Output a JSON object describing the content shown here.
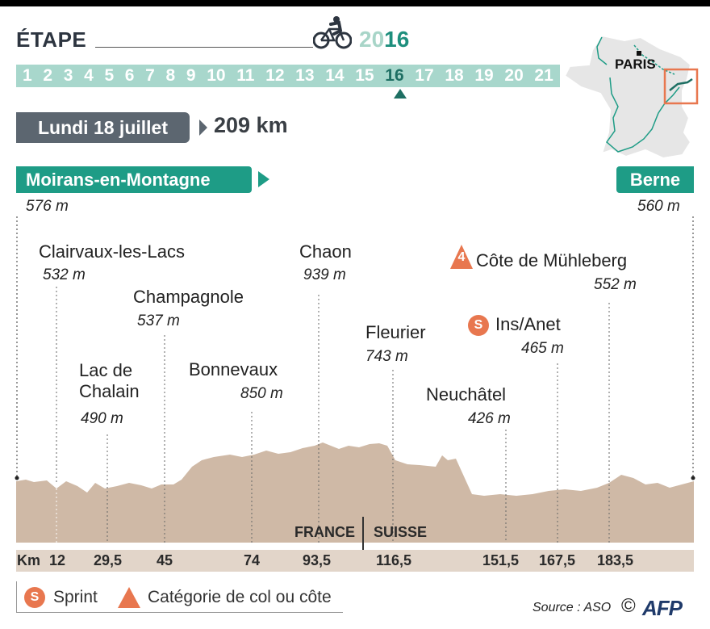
{
  "header": {
    "title": "ÉTAPE",
    "year_prefix": "20",
    "year_suffix": "16",
    "stages": [
      "1",
      "2",
      "3",
      "4",
      "5",
      "6",
      "7",
      "8",
      "9",
      "10",
      "11",
      "12",
      "13",
      "14",
      "15",
      "16",
      "17",
      "18",
      "19",
      "20",
      "21"
    ],
    "current_stage": "16"
  },
  "info": {
    "date": "Lundi 18 juillet",
    "distance": "209 km"
  },
  "map": {
    "city": "PARIS"
  },
  "route": {
    "start": "Moirans-en-Montagne",
    "start_alt": "576 m",
    "end": "Berne",
    "end_alt": "560 m"
  },
  "waypoints": [
    {
      "name": "Clairvaux-les-Lacs",
      "alt": "532 m"
    },
    {
      "name_line1": "Lac de",
      "name_line2": "Chalain",
      "alt": "490 m"
    },
    {
      "name": "Champagnole",
      "alt": "537 m"
    },
    {
      "name": "Bonnevaux",
      "alt": "850 m"
    },
    {
      "name": "Chaon",
      "alt": "939 m"
    },
    {
      "name": "Fleurier",
      "alt": "743 m"
    },
    {
      "name": "Neuchâtel",
      "alt": "426 m"
    },
    {
      "name": "Ins/Anet",
      "alt": "465 m",
      "badge": "S"
    },
    {
      "name": "Côte de Mühleberg",
      "alt": "552 m",
      "badge": "4"
    }
  ],
  "countries": [
    "FRANCE",
    "SUISSE"
  ],
  "km": {
    "label": "Km",
    "marks": [
      "12",
      "29,5",
      "45",
      "74",
      "93,5",
      "116,5",
      "151,5",
      "167,5",
      "183,5"
    ]
  },
  "legend": {
    "sprint_symbol": "S",
    "sprint": "Sprint",
    "climb": "Catégorie de col ou côte"
  },
  "credits": {
    "source": "Source : ASO",
    "copyright": "©",
    "agency": "AFP"
  },
  "colors": {
    "accent": "#1e9c86",
    "stage_bar": "#a8d7cc",
    "profile": "#cfb9a6",
    "badge": "#e8774f",
    "date_box": "#5c6670"
  }
}
